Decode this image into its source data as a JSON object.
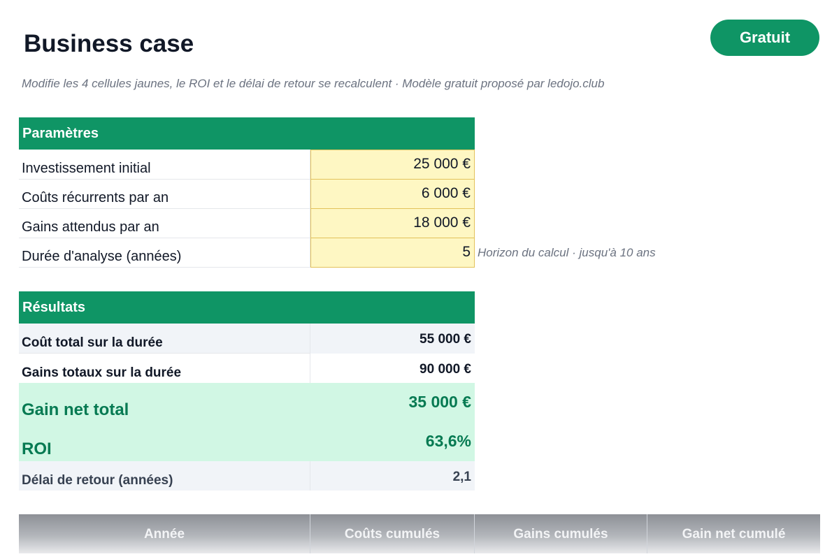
{
  "title": "Business case",
  "badge": "Gratuit",
  "subtitle": "Modifie les 4 cellules jaunes, le ROI et le délai de retour se recalculent · Modèle gratuit proposé par ledojo.club",
  "parameters": {
    "header": "Paramètres",
    "rows": [
      {
        "label": "Investissement initial",
        "value": "25 000 €"
      },
      {
        "label": "Coûts récurrents par an",
        "value": "6 000 €"
      },
      {
        "label": "Gains attendus par an",
        "value": "18 000 €"
      },
      {
        "label": "Durée d'analyse (années)",
        "value": "5"
      }
    ],
    "duration_note": "Horizon du calcul · jusqu'à 10 ans"
  },
  "results": {
    "header": "Résultats",
    "rows": [
      {
        "label": "Coût total sur la durée",
        "value": "55 000 €"
      },
      {
        "label": "Gains totaux sur la durée",
        "value": "90 000 €"
      },
      {
        "label": "Gain net total",
        "value": "35 000 €"
      },
      {
        "label": "ROI",
        "value": "63,6%"
      },
      {
        "label": "Délai de retour (années)",
        "value": "2,1"
      }
    ]
  },
  "table": {
    "columns": [
      "Année",
      "Coûts cumulés",
      "Gains cumulés",
      "Gain net cumulé"
    ]
  },
  "colors": {
    "accent_green": "#0f9565",
    "input_yellow": "#fef7c3",
    "highlight_green": "#d1f7e4",
    "highlight_text": "#067a52"
  }
}
